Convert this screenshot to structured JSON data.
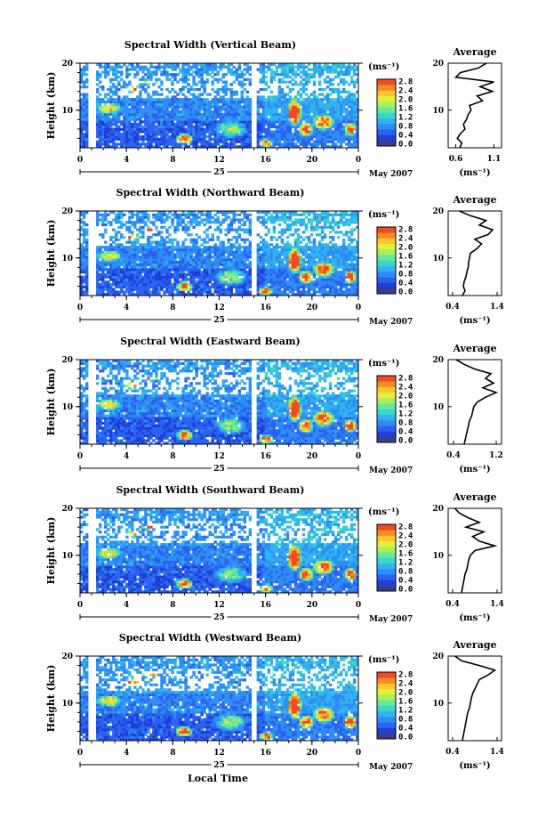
{
  "chart_data": {
    "type": "heatmap",
    "xlabel": "Local Time",
    "ylabel": "Height (km)",
    "x_ticks": [
      "0",
      "4",
      "8",
      "12",
      "16",
      "20",
      "0"
    ],
    "xlim": [
      0,
      24
    ],
    "y_ticks": [
      "20",
      "10"
    ],
    "ylim": [
      2,
      20
    ],
    "date_day": "25",
    "month_label": "May 2007",
    "colorbar": {
      "unit": "(ms⁻¹)",
      "ticks": [
        "2.8",
        "2.4",
        "2.0",
        "1.6",
        "1.2",
        "0.8",
        "0.4",
        "0.0"
      ],
      "range": [
        0,
        3.0
      ],
      "colors": [
        "#3b3b8f",
        "#1f3fd6",
        "#2a63f0",
        "#2f8df5",
        "#30b4f0",
        "#3cd6c8",
        "#66e89a",
        "#a8ef5c",
        "#e8ec3a",
        "#f9c72b",
        "#f78a25",
        "#ee4c24"
      ]
    },
    "avg_ylabel": "(ms⁻¹)",
    "panels": [
      {
        "title": "Spectral Width (Vertical Beam)",
        "avg_title": "Average",
        "avg_xticks": [
          "0.6",
          "1.1"
        ],
        "avg_xlim": [
          0.5,
          1.2
        ],
        "avg_heights": [
          2,
          3,
          4,
          5,
          6,
          7,
          8,
          9,
          10,
          11,
          12,
          13,
          14,
          15,
          16,
          17,
          18,
          19,
          20
        ],
        "avg_values": [
          0.65,
          0.68,
          0.62,
          0.66,
          0.72,
          0.7,
          0.74,
          0.76,
          0.8,
          0.78,
          0.95,
          0.88,
          1.08,
          0.92,
          1.1,
          0.6,
          0.66,
          0.9,
          1.0
        ]
      },
      {
        "title": "Spectral Width (Northward Beam)",
        "avg_title": "Average",
        "avg_xticks": [
          "0.4",
          "1.4"
        ],
        "avg_xlim": [
          0.3,
          1.5
        ],
        "avg_heights": [
          2,
          3,
          4,
          5,
          6,
          7,
          8,
          9,
          10,
          11,
          12,
          13,
          14,
          15,
          16,
          17,
          18,
          19,
          20
        ],
        "avg_values": [
          0.62,
          0.68,
          0.64,
          0.66,
          0.7,
          0.72,
          0.75,
          0.76,
          0.78,
          0.8,
          0.95,
          1.05,
          0.9,
          1.2,
          1.3,
          1.0,
          1.15,
          0.8,
          0.55
        ]
      },
      {
        "title": "Spectral Width (Eastward Beam)",
        "avg_title": "Average",
        "avg_xticks": [
          "0.4",
          "1.2"
        ],
        "avg_xlim": [
          0.3,
          1.3
        ],
        "avg_heights": [
          2,
          3,
          4,
          5,
          6,
          7,
          8,
          9,
          10,
          11,
          12,
          13,
          14,
          15,
          16,
          17,
          18,
          19,
          20
        ],
        "avg_values": [
          0.6,
          0.62,
          0.64,
          0.66,
          0.68,
          0.7,
          0.74,
          0.76,
          0.78,
          0.85,
          1.0,
          1.2,
          0.95,
          1.15,
          1.0,
          1.1,
          0.8,
          0.6,
          0.45
        ]
      },
      {
        "title": "Spectral Width (Southward Beam)",
        "avg_title": "Average",
        "avg_xticks": [
          "0.4",
          "1.4"
        ],
        "avg_xlim": [
          0.3,
          1.5
        ],
        "avg_heights": [
          2,
          3,
          4,
          5,
          6,
          7,
          8,
          9,
          10,
          11,
          12,
          13,
          14,
          15,
          16,
          17,
          18,
          19,
          20
        ],
        "avg_values": [
          0.6,
          0.62,
          0.64,
          0.66,
          0.68,
          0.72,
          0.74,
          0.76,
          0.8,
          0.9,
          1.35,
          1.0,
          0.85,
          1.1,
          0.7,
          1.0,
          0.75,
          0.55,
          0.45
        ]
      },
      {
        "title": "Spectral Width (Westward Beam)",
        "avg_title": "Average",
        "avg_xticks": [
          "0.4",
          "1.4"
        ],
        "avg_xlim": [
          0.3,
          1.5
        ],
        "avg_heights": [
          2,
          3,
          4,
          5,
          6,
          7,
          8,
          9,
          10,
          11,
          12,
          13,
          14,
          15,
          16,
          17,
          18,
          19,
          20
        ],
        "avg_values": [
          0.62,
          0.64,
          0.66,
          0.68,
          0.7,
          0.72,
          0.74,
          0.78,
          0.8,
          0.82,
          0.85,
          0.9,
          0.95,
          1.0,
          1.2,
          1.35,
          1.0,
          0.6,
          0.45
        ]
      }
    ]
  }
}
